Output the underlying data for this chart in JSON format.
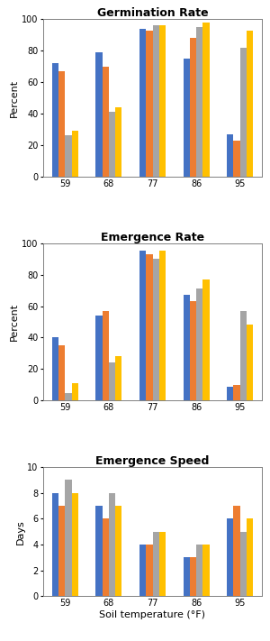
{
  "categories": [
    "59",
    "68",
    "77",
    "86",
    "95"
  ],
  "colors": [
    "#4472C4",
    "#ED7D31",
    "#A5A5A5",
    "#FFC000"
  ],
  "germination_rate": {
    "title": "Germination Rate",
    "ylabel": "Percent",
    "ylim": [
      0,
      100
    ],
    "yticks": [
      0,
      20,
      40,
      60,
      80,
      100
    ],
    "series": [
      [
        72,
        79,
        94,
        75,
        27
      ],
      [
        67,
        70,
        93,
        88,
        23
      ],
      [
        26,
        41,
        96,
        95,
        82
      ],
      [
        29,
        44,
        96,
        98,
        93
      ]
    ]
  },
  "emergence_rate": {
    "title": "Emergence Rate",
    "ylabel": "Percent",
    "ylim": [
      0,
      100
    ],
    "yticks": [
      0,
      20,
      40,
      60,
      80,
      100
    ],
    "series": [
      [
        40,
        54,
        95,
        67,
        9
      ],
      [
        35,
        57,
        93,
        63,
        10
      ],
      [
        5,
        24,
        90,
        71,
        57
      ],
      [
        11,
        28,
        95,
        77,
        48
      ]
    ]
  },
  "emergence_speed": {
    "title": "Emergence Speed",
    "ylabel": "Days",
    "xlabel": "Soil temperature (°F)",
    "ylim": [
      0,
      10
    ],
    "yticks": [
      0,
      2,
      4,
      6,
      8,
      10
    ],
    "series": [
      [
        8,
        7,
        4,
        3,
        6
      ],
      [
        7,
        6,
        4,
        3,
        7
      ],
      [
        9,
        8,
        5,
        4,
        5
      ],
      [
        8,
        7,
        5,
        4,
        6
      ]
    ]
  },
  "figsize": [
    3.0,
    7.11
  ],
  "dpi": 100,
  "bar_width": 0.15,
  "title_fontsize": 9,
  "label_fontsize": 7,
  "ylabel_fontsize": 8,
  "xlabel_fontsize": 8
}
